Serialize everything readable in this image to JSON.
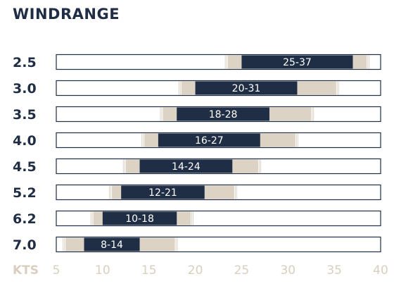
{
  "chart_data": {
    "type": "bar",
    "title": "WINDRANGE",
    "xlabel": "KTS",
    "xlim": [
      5,
      40
    ],
    "xticks": [
      5,
      10,
      15,
      20,
      25,
      30,
      35,
      40
    ],
    "categories": [
      "2.5",
      "3.0",
      "3.5",
      "4.0",
      "4.5",
      "5.2",
      "6.2",
      "7.0"
    ],
    "series": [
      {
        "values": [
          [
            25,
            37
          ],
          [
            20,
            31
          ],
          [
            18,
            28
          ],
          [
            16,
            27
          ],
          [
            14,
            24
          ],
          [
            12,
            21
          ],
          [
            10,
            18
          ],
          [
            8,
            14
          ]
        ]
      }
    ],
    "range_labels": [
      "25-37",
      "20-31",
      "18-28",
      "16-27",
      "14-24",
      "12-21",
      "10-18",
      "8-14"
    ],
    "extended_ranges": [
      [
        23.5,
        38.5
      ],
      [
        18.5,
        35.2
      ],
      [
        16.5,
        32.5
      ],
      [
        14.5,
        30.8
      ],
      [
        12.5,
        26.8
      ],
      [
        11,
        24.2
      ],
      [
        9,
        19.5
      ],
      [
        6,
        17.8
      ]
    ],
    "grid": false,
    "colors": {
      "core": "#1f2d45",
      "extended": "#ddd3c5",
      "frame": "#1f2d45",
      "muted": "#d9cfbf"
    }
  }
}
